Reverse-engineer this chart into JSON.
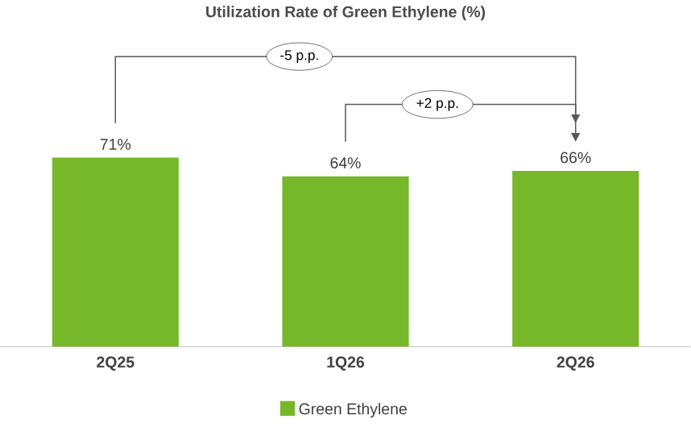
{
  "chart_data": {
    "type": "bar",
    "title": "Utilization Rate of Green Ethylene (%)",
    "categories": [
      "2Q25",
      "1Q26",
      "2Q26"
    ],
    "series": [
      {
        "name": "Green Ethylene",
        "color": "#77b82a",
        "values": [
          71,
          64,
          66
        ],
        "value_labels": [
          "71%",
          "64%",
          "66%"
        ]
      }
    ],
    "annotations": [
      "-5 p.p.",
      "+2 p.p."
    ],
    "legend": "bottom"
  }
}
